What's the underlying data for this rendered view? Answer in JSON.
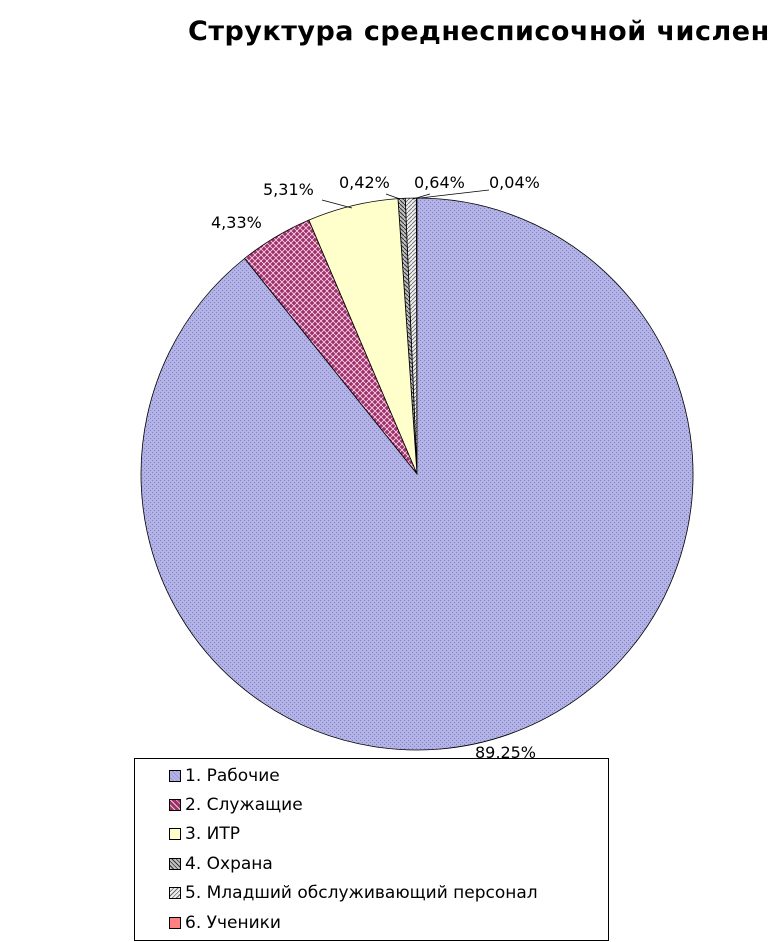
{
  "chart_data": {
    "type": "pie",
    "title": "Структура среднесписочной числен",
    "categories": [
      "1. Рабочие",
      "2. Служащие",
      "3. ИТР",
      "4. Охрана",
      "5. Младший обслуживающий персонал",
      "6. Ученики"
    ],
    "values": [
      89.25,
      4.33,
      5.31,
      0.42,
      0.64,
      0.04
    ],
    "data_labels": [
      "89,25%",
      "4,33%",
      "5,31%",
      "0,42%",
      "0,64%",
      "0,04%"
    ],
    "colors": [
      "#b3b3e6",
      "#993366",
      "#ffffcc",
      "#a0a0a0",
      "#d0d0d0",
      "#ff8080"
    ],
    "legend_position": "bottom"
  }
}
